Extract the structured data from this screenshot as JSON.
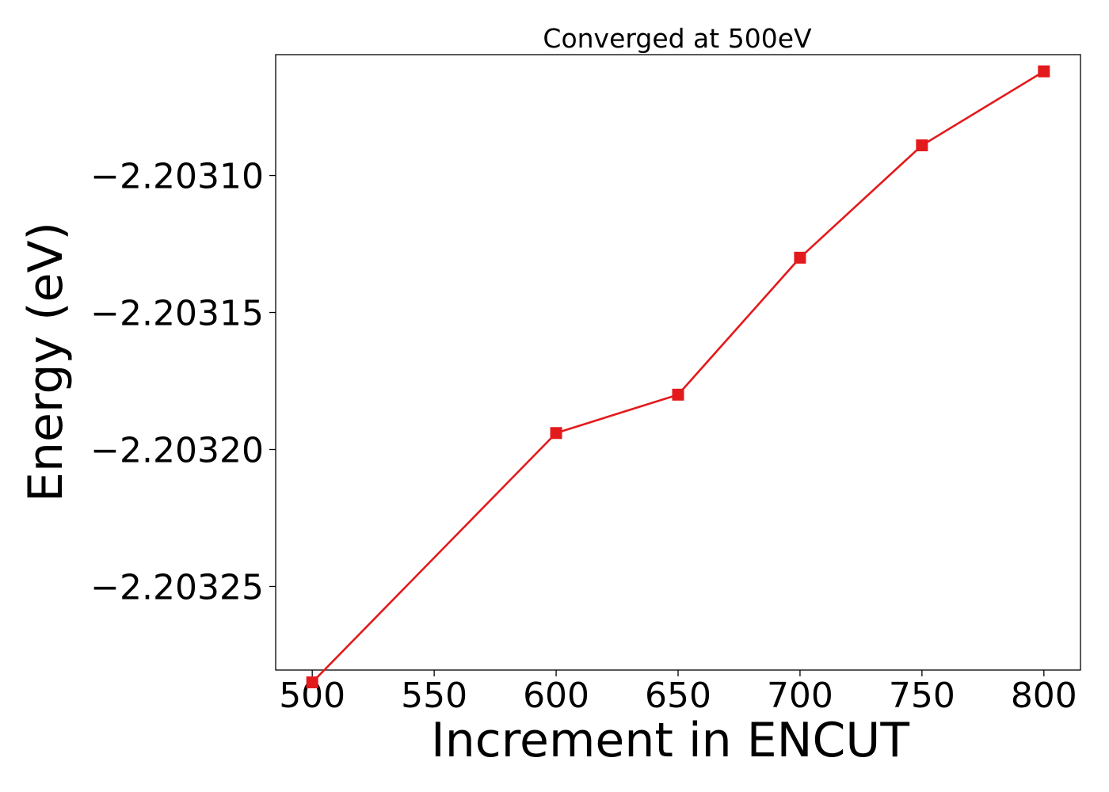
{
  "chart_data": {
    "type": "line",
    "title": "Converged at 500eV",
    "xlabel": "Increment in ENCUT",
    "ylabel": "Energy (eV)",
    "x": [
      500,
      600,
      650,
      700,
      750,
      800
    ],
    "series": [
      {
        "values": [
          -2.203285,
          -2.203194,
          -2.20318,
          -2.20313,
          -2.203089,
          -2.203062
        ],
        "color": "#e31a1c",
        "marker": "square"
      }
    ],
    "xticks": [
      500,
      550,
      600,
      650,
      700,
      750,
      800
    ],
    "xtick_labels": [
      "500",
      "550",
      "600",
      "650",
      "700",
      "750",
      "800"
    ],
    "yticks": [
      -2.20325,
      -2.2032,
      -2.20315,
      -2.2031
    ],
    "ytick_labels": [
      "−2.20325",
      "−2.20320",
      "−2.20315",
      "−2.20310"
    ],
    "xlim": [
      485,
      815
    ],
    "ylim": [
      -2.2032805,
      -2.2030559
    ],
    "grid": false,
    "legend": "none"
  }
}
